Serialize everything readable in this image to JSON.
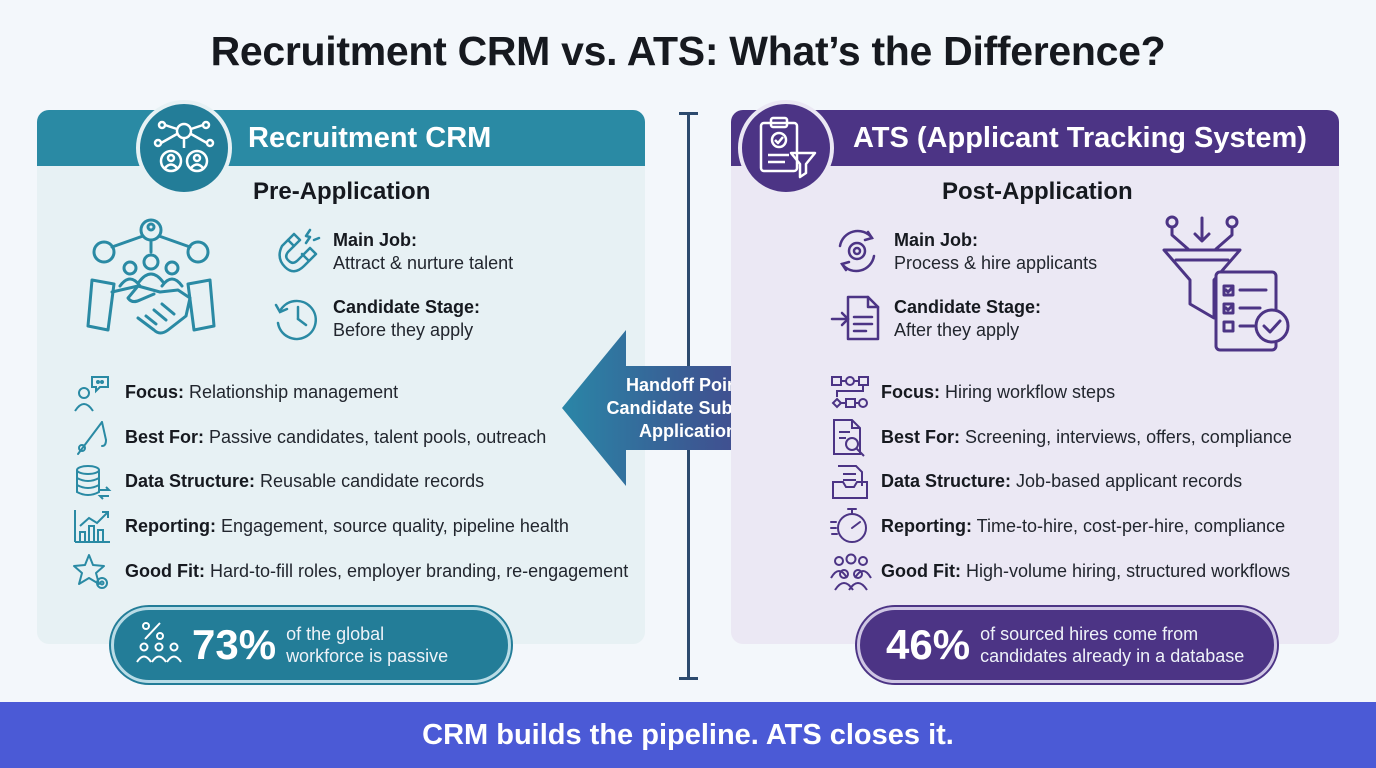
{
  "title": "Recruitment CRM vs. ATS: What’s the Difference?",
  "crm": {
    "header": "Recruitment CRM",
    "subheading": "Pre-Application",
    "main_job_label": "Main Job:",
    "main_job_value": "Attract & nurture talent",
    "stage_label": "Candidate Stage:",
    "stage_value": "Before they apply",
    "rows": [
      {
        "label": "Focus:",
        "value": "Relationship management"
      },
      {
        "label": "Best For:",
        "value": "Passive candidates, talent pools, outreach"
      },
      {
        "label": "Data Structure:",
        "value": "Reusable candidate records"
      },
      {
        "label": "Reporting:",
        "value": "Engagement, source quality, pipeline health"
      },
      {
        "label": "Good Fit:",
        "value": "Hard-to-fill roles, employer branding, re-engagement"
      }
    ],
    "stat_value": "73%",
    "stat_text": "of the global workforce is passive"
  },
  "ats": {
    "header": "ATS (Applicant Tracking System)",
    "subheading": "Post-Application",
    "main_job_label": "Main Job:",
    "main_job_value": "Process & hire applicants",
    "stage_label": "Candidate Stage:",
    "stage_value": "After they apply",
    "rows": [
      {
        "label": "Focus:",
        "value": "Hiring workflow steps"
      },
      {
        "label": "Best For:",
        "value": "Screening, interviews, offers, compliance"
      },
      {
        "label": "Data Structure:",
        "value": "Job-based applicant records"
      },
      {
        "label": "Reporting:",
        "value": "Time-to-hire, cost-per-hire, compliance"
      },
      {
        "label": "Good Fit:",
        "value": "High-volume hiring, structured workflows"
      }
    ],
    "stat_value": "46%",
    "stat_text": "of sourced hires come from candidates already in a database"
  },
  "handoff": {
    "line1": "Handoff Point:",
    "line2": "Candidate Submits",
    "line3": "Application"
  },
  "footer": "CRM builds the pipeline. ATS closes it.",
  "colors": {
    "crm": "#2a8aa4",
    "ats": "#4c3485",
    "banner": "#4b5ad6"
  }
}
